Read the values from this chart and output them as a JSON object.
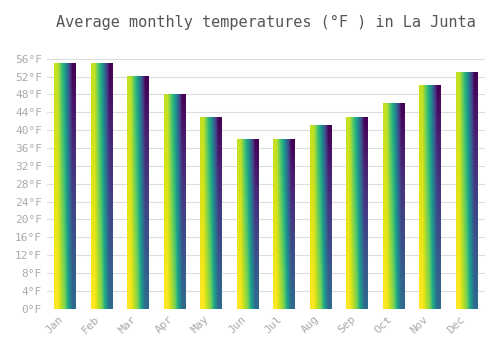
{
  "title": "Average monthly temperatures (°F ) in La Junta",
  "months": [
    "Jan",
    "Feb",
    "Mar",
    "Apr",
    "May",
    "Jun",
    "Jul",
    "Aug",
    "Sep",
    "Oct",
    "Nov",
    "Dec"
  ],
  "values": [
    55,
    55,
    52,
    48,
    43,
    38,
    38,
    41,
    43,
    46,
    50,
    53
  ],
  "bar_color_top": "#FFA500",
  "bar_color_bottom": "#FFD070",
  "ylim": [
    0,
    60
  ],
  "yticks": [
    0,
    4,
    8,
    12,
    16,
    20,
    24,
    28,
    32,
    36,
    40,
    44,
    48,
    52,
    56
  ],
  "ytick_labels": [
    "0°F",
    "4°F",
    "8°F",
    "12°F",
    "16°F",
    "20°F",
    "24°F",
    "28°F",
    "32°F",
    "36°F",
    "40°F",
    "44°F",
    "48°F",
    "52°F",
    "56°F"
  ],
  "background_color": "#ffffff",
  "grid_color": "#dddddd",
  "title_fontsize": 11,
  "tick_fontsize": 8,
  "font_family": "monospace"
}
